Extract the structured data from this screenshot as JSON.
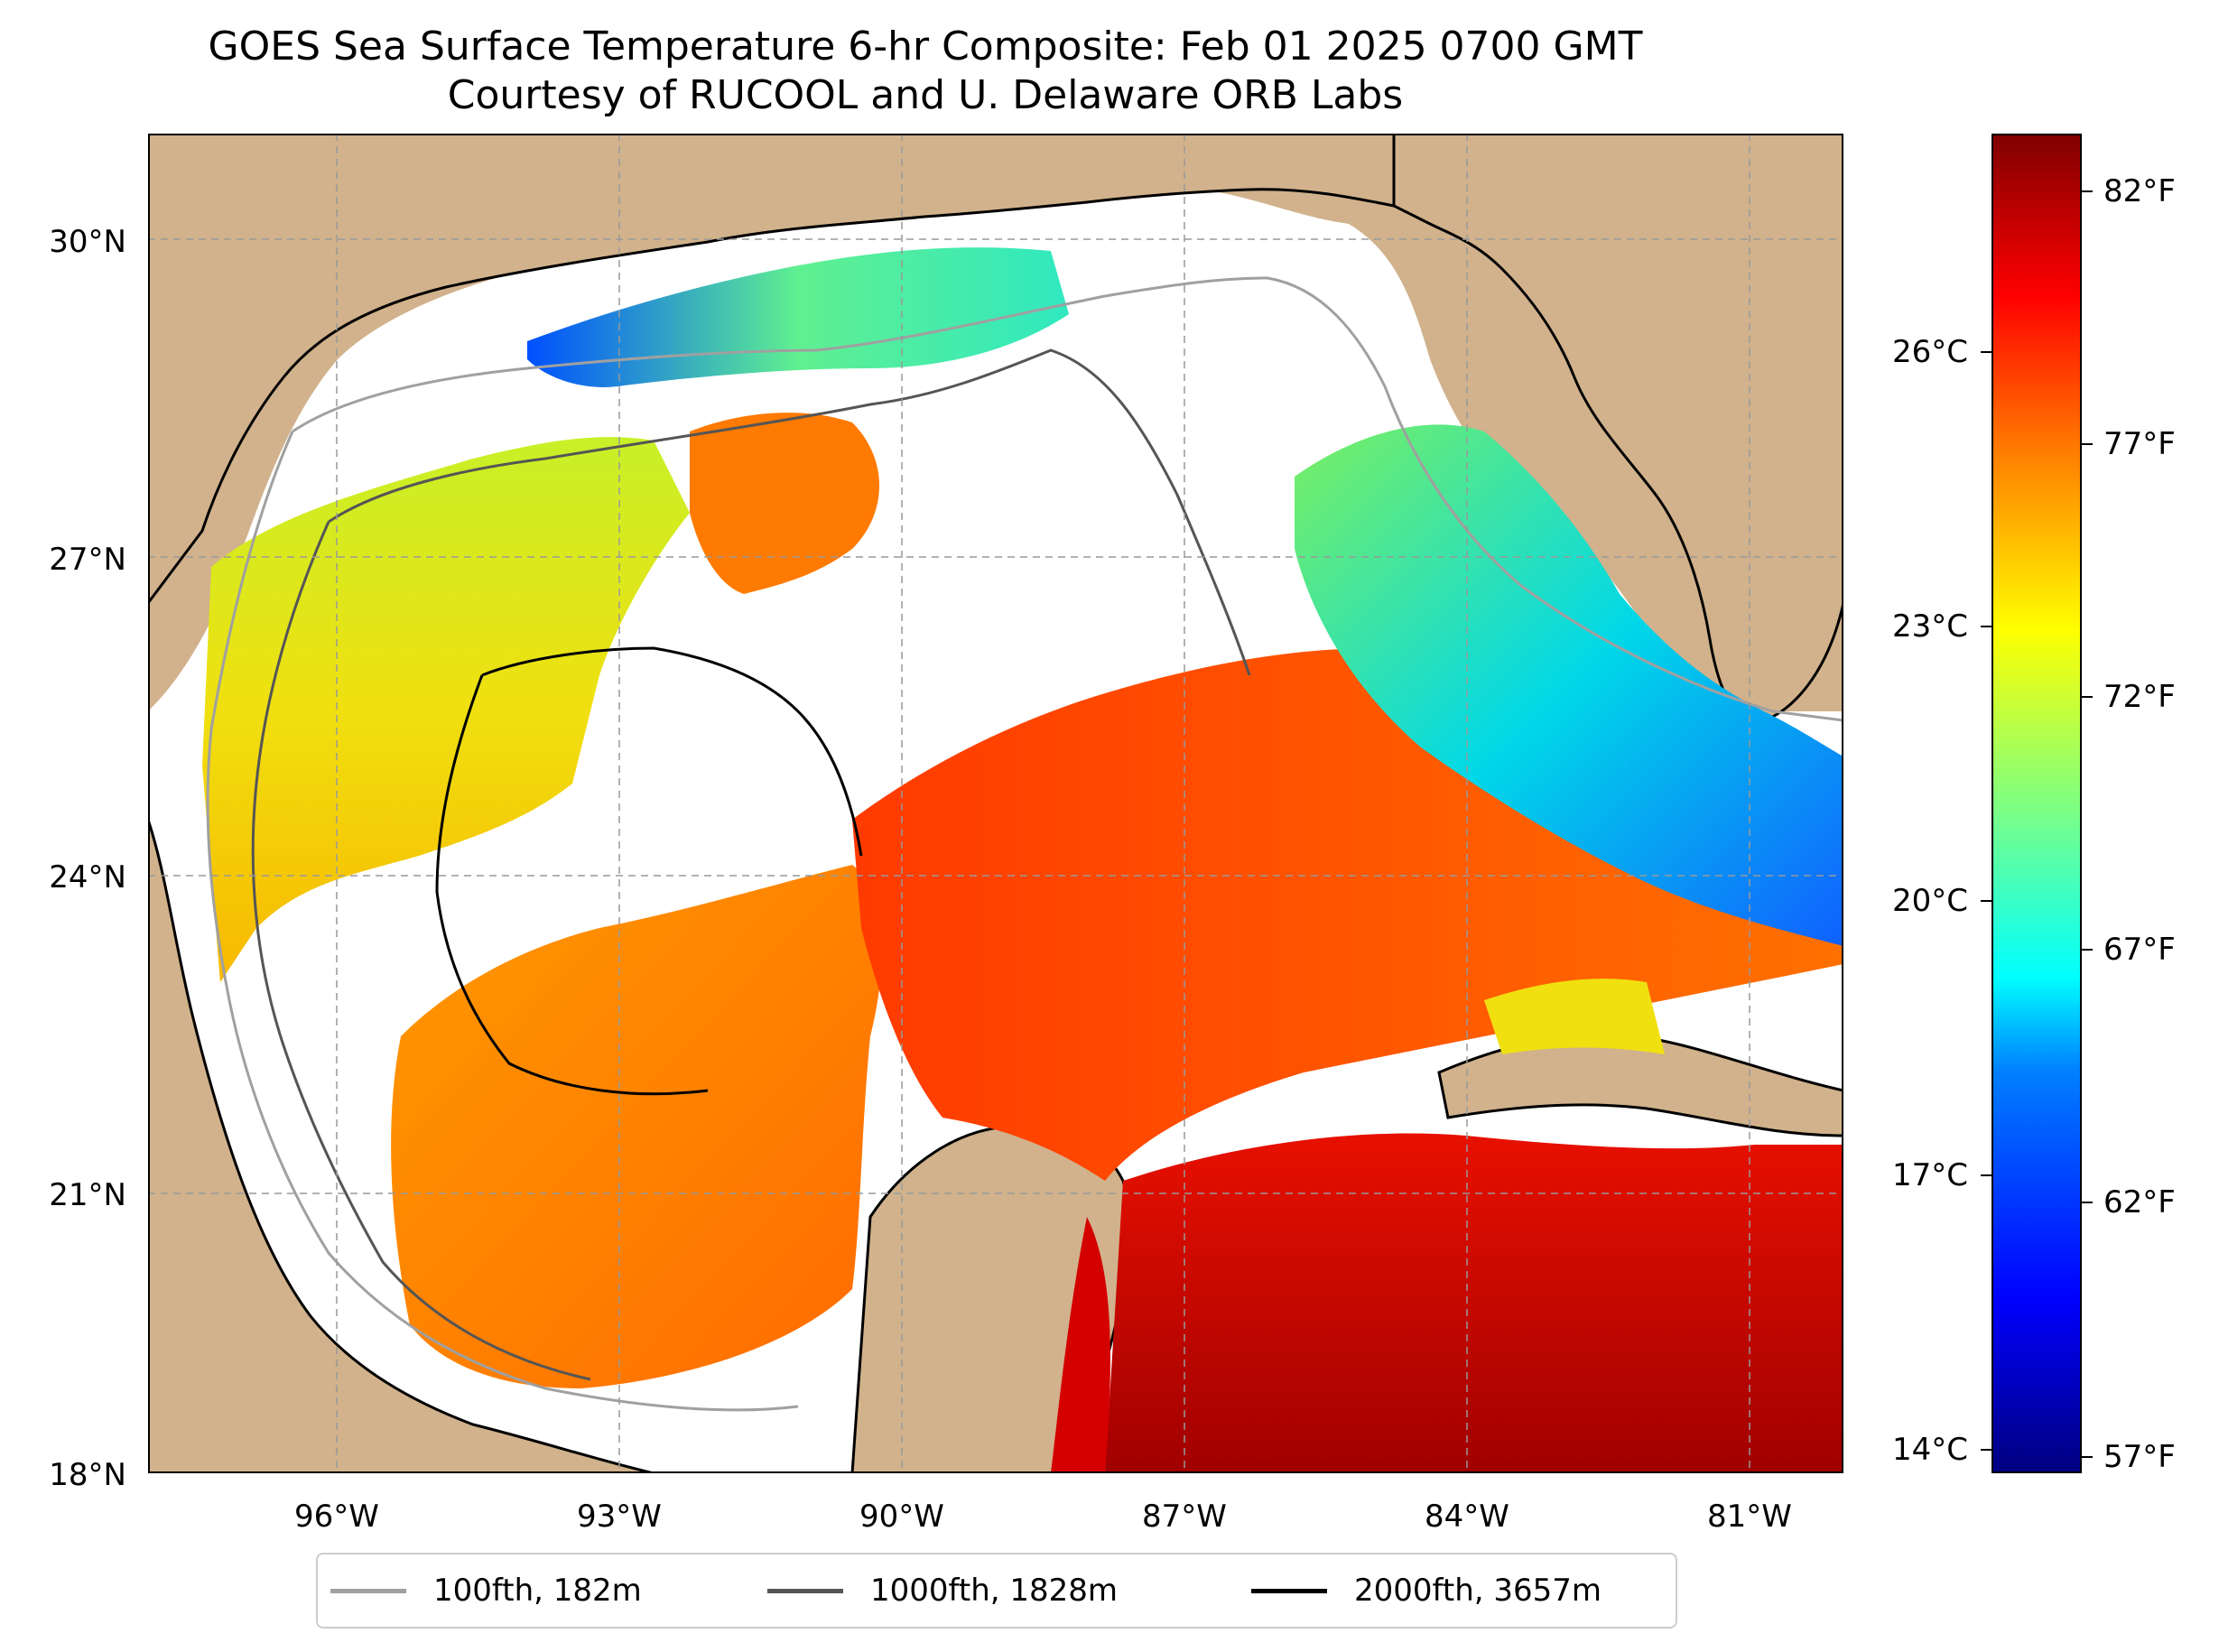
{
  "title": {
    "line1": "GOES Sea Surface Temperature 6-hr Composite: Feb 01 2025 0700 GMT",
    "line2": "Courtesy of RUCOOL and U. Delaware ORB Labs"
  },
  "map": {
    "lon_range": [
      -98,
      -80
    ],
    "lat_range": [
      18,
      31
    ],
    "lat_ticks": [
      "30°N",
      "27°N",
      "24°N",
      "21°N",
      "18°N"
    ],
    "lon_ticks": [
      "96°W",
      "93°W",
      "90°W",
      "87°W",
      "84°W",
      "81°W"
    ],
    "land_color": "#d1b28c",
    "cloud_color": "#ffffff",
    "coastline_color": "#000000",
    "gridlines": "dashed"
  },
  "colorbar": {
    "colormap": "jet",
    "celsius_ticks": [
      "26°C",
      "23°C",
      "20°C",
      "17°C",
      "14°C"
    ],
    "fahrenheit_ticks": [
      "82°F",
      "77°F",
      "72°F",
      "67°F",
      "62°F",
      "57°F"
    ],
    "range_f": [
      56,
      84
    ]
  },
  "legend": {
    "items": [
      {
        "label": "100fth, 182m",
        "color": "#a0a0a0"
      },
      {
        "label": "1000fth, 1828m",
        "color": "#555555"
      },
      {
        "label": "2000fth, 3657m",
        "color": "#000000"
      }
    ]
  }
}
